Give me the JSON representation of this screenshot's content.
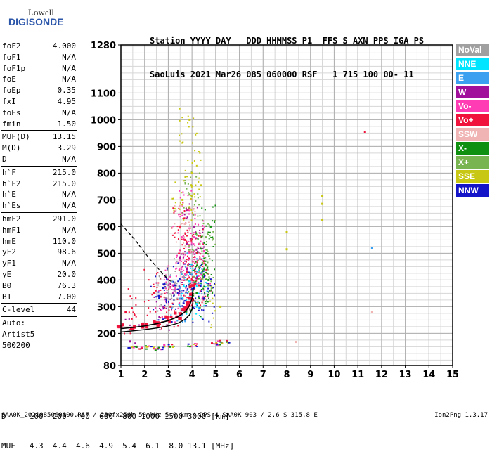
{
  "logo": {
    "line1": "Lowell",
    "line2": "DIGISONDE"
  },
  "header": {
    "line1": "Station YYYY DAY   DDD HHMMSS P1  FFS S AXN PPS IGA PS",
    "line2": "SaoLuis 2021 Mar26 085 060000 RSF   1 715 100 00- 11"
  },
  "params": {
    "group1": [
      {
        "k": "foF2",
        "v": "4.000"
      },
      {
        "k": "foF1",
        "v": "N/A"
      },
      {
        "k": "foF1p",
        "v": "N/A"
      },
      {
        "k": "foE",
        "v": "N/A"
      },
      {
        "k": "foEp",
        "v": "0.35"
      },
      {
        "k": "fxI",
        "v": "4.95"
      },
      {
        "k": "foEs",
        "v": "N/A"
      },
      {
        "k": "fmin",
        "v": "1.50"
      }
    ],
    "group2": [
      {
        "k": "MUF(D)",
        "v": "13.15"
      },
      {
        "k": "M(D)",
        "v": "3.29"
      },
      {
        "k": "D",
        "v": "N/A"
      }
    ],
    "group3": [
      {
        "k": "h`F",
        "v": "215.0"
      },
      {
        "k": "h`F2",
        "v": "215.0"
      },
      {
        "k": "h`E",
        "v": "N/A"
      },
      {
        "k": "h`Es",
        "v": "N/A"
      }
    ],
    "group4": [
      {
        "k": "hmF2",
        "v": "291.0"
      },
      {
        "k": "hmF1",
        "v": "N/A"
      },
      {
        "k": "hmE",
        "v": "110.0"
      },
      {
        "k": "yF2",
        "v": "98.6"
      },
      {
        "k": "yF1",
        "v": "N/A"
      },
      {
        "k": "yE",
        "v": "20.0"
      },
      {
        "k": "B0",
        "v": "76.3"
      },
      {
        "k": "B1",
        "v": "7.00"
      }
    ],
    "group5": [
      {
        "k": "C-level",
        "v": "44"
      }
    ],
    "auto": [
      "Auto:",
      "Artist5",
      "500200"
    ]
  },
  "legend": [
    {
      "label": "NoVal",
      "color": "#a0a0a0"
    },
    {
      "label": "NNE",
      "color": "#00e5ff"
    },
    {
      "label": "E",
      "color": "#3ca0f0"
    },
    {
      "label": "W",
      "color": "#a0109a"
    },
    {
      "label": "Vo-",
      "color": "#ff3cb4"
    },
    {
      "label": "Vo+",
      "color": "#f0143c"
    },
    {
      "label": "SSW",
      "color": "#f0b4b4"
    },
    {
      "label": "X-",
      "color": "#109010"
    },
    {
      "label": "X+",
      "color": "#78b450"
    },
    {
      "label": "SSE",
      "color": "#c8c814"
    },
    {
      "label": "NNW",
      "color": "#1414c8"
    }
  ],
  "bottom": {
    "line1": "D     100  200  400  600  800 1000 1500 3000 [km]",
    "line2": "MUF   4.3  4.4  4.6  4.9  5.4  6.1  8.0 13.1 [MHz]"
  },
  "footer": {
    "left": "SAA0K_2021085060000.RSF / 280fx256h 50 kHz 5.0 km / DPS-4 SAA0K 903 / 2.6 S 315.8 E",
    "right": "Ion2Png 1.3.17"
  },
  "chart_data": {
    "type": "scatter",
    "title": "",
    "xlabel": "",
    "ylabel": "",
    "xlim": [
      1,
      15
    ],
    "ylim": [
      80,
      1280
    ],
    "x_ticks": [
      1,
      2,
      3,
      4,
      5,
      6,
      7,
      8,
      9,
      10,
      11,
      12,
      13,
      14,
      15
    ],
    "y_ticks": [
      80,
      200,
      300,
      400,
      500,
      600,
      700,
      800,
      900,
      1000,
      1100,
      1280
    ],
    "grid": true,
    "x_units": "MHz",
    "y_units": "km",
    "profile_curve": {
      "name": "",
      "points": [
        [
          1.0,
          205
        ],
        [
          2.0,
          214
        ],
        [
          2.5,
          220
        ],
        [
          3.0,
          228
        ],
        [
          3.4,
          238
        ],
        [
          3.7,
          252
        ],
        [
          3.9,
          270
        ],
        [
          4.0,
          291
        ],
        [
          4.03,
          310
        ],
        [
          4.05,
          330
        ]
      ]
    },
    "dashed_curve": {
      "name": "",
      "points": [
        [
          1.0,
          610
        ],
        [
          1.3,
          580
        ],
        [
          1.6,
          550
        ],
        [
          1.9,
          515
        ],
        [
          2.2,
          480
        ],
        [
          2.5,
          450
        ],
        [
          2.8,
          420
        ],
        [
          3.1,
          395
        ]
      ]
    },
    "scaled_trace": {
      "name": "",
      "points": [
        [
          1.0,
          218
        ],
        [
          1.5,
          222
        ],
        [
          2.0,
          228
        ],
        [
          2.5,
          236
        ],
        [
          3.0,
          248
        ],
        [
          3.4,
          262
        ],
        [
          3.7,
          280
        ],
        [
          3.9,
          305
        ],
        [
          4.0,
          330
        ],
        [
          4.05,
          370
        ]
      ]
    },
    "echo_clusters": [
      {
        "name": "Vo+",
        "points": [
          [
            3.5,
            600
          ],
          [
            3.7,
            550
          ],
          [
            4.2,
            500
          ],
          [
            3.8,
            430
          ],
          [
            4.0,
            400
          ],
          [
            4.3,
            380
          ],
          [
            2.4,
            350
          ],
          [
            1.2,
            280
          ],
          [
            3.1,
            300
          ],
          [
            11.3,
            955
          ]
        ]
      },
      {
        "name": "Vo-",
        "points": [
          [
            3.6,
            650
          ],
          [
            3.9,
            500
          ],
          [
            4.4,
            420
          ],
          [
            3.2,
            380
          ],
          [
            2.9,
            330
          ],
          [
            3.7,
            460
          ],
          [
            4.1,
            560
          ]
        ]
      },
      {
        "name": "X-",
        "points": [
          [
            4.6,
            500
          ],
          [
            4.5,
            420
          ],
          [
            4.7,
            400
          ],
          [
            4.2,
            350
          ],
          [
            4.8,
            600
          ]
        ]
      },
      {
        "name": "X+",
        "points": [
          [
            4.7,
            380
          ],
          [
            4.6,
            560
          ],
          [
            4.3,
            450
          ],
          [
            3.9,
            720
          ]
        ]
      },
      {
        "name": "SSE",
        "points": [
          [
            9.5,
            715
          ],
          [
            9.5,
            685
          ],
          [
            9.5,
            625
          ],
          [
            8.0,
            580
          ],
          [
            8.0,
            515
          ],
          [
            3.6,
            700
          ],
          [
            5.2,
            300
          ],
          [
            4.0,
            800
          ],
          [
            3.9,
            1000
          ]
        ]
      },
      {
        "name": "NNW",
        "points": [
          [
            4.1,
            370
          ],
          [
            3.3,
            380
          ],
          [
            2.6,
            340
          ],
          [
            4.5,
            330
          ],
          [
            3.6,
            330
          ]
        ]
      },
      {
        "name": "W",
        "points": [
          [
            3.8,
            440
          ],
          [
            4.1,
            600
          ],
          [
            2.8,
            300
          ],
          [
            1.4,
            170
          ]
        ]
      },
      {
        "name": "E",
        "points": [
          [
            11.6,
            520
          ],
          [
            4.0,
            420
          ],
          [
            3.5,
            330
          ]
        ]
      },
      {
        "name": "NNE",
        "points": [
          [
            4.2,
            310
          ],
          [
            3.9,
            380
          ]
        ]
      },
      {
        "name": "SSW",
        "points": [
          [
            11.6,
            280
          ],
          [
            8.4,
            168
          ],
          [
            3.7,
            610
          ]
        ]
      },
      {
        "name": "NoVal",
        "points": [
          [
            3.3,
            390
          ],
          [
            3.0,
            350
          ]
        ]
      }
    ],
    "es_layer_points": [
      [
        1.5,
        148
      ],
      [
        2.0,
        150
      ],
      [
        3.0,
        155
      ],
      [
        4.0,
        158
      ],
      [
        5.0,
        162
      ],
      [
        5.3,
        170
      ],
      [
        2.5,
        145
      ]
    ]
  }
}
